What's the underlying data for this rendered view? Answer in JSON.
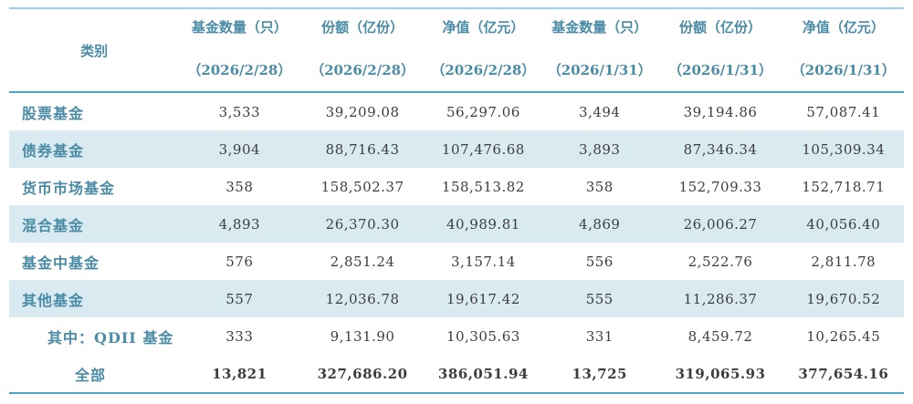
{
  "table": {
    "header": {
      "category_label": "类别",
      "columns": [
        {
          "title": "基金数量（只）",
          "date": "（2026/2/28）"
        },
        {
          "title": "份额（亿份）",
          "date": "（2026/2/28）"
        },
        {
          "title": "净值（亿元）",
          "date": "（2026/2/28）"
        },
        {
          "title": "基金数量（只）",
          "date": "（2026/1/31）"
        },
        {
          "title": "份额（亿份）",
          "date": "（2026/1/31）"
        },
        {
          "title": "净值（亿元）",
          "date": "（2026/1/31）"
        }
      ]
    },
    "rows": [
      {
        "category": "股票基金",
        "values": [
          "3,533",
          "39,209.08",
          "56,297.06",
          "3,494",
          "39,194.86",
          "57,087.41"
        ]
      },
      {
        "category": "债券基金",
        "values": [
          "3,904",
          "88,716.43",
          "107,476.68",
          "3,893",
          "87,346.34",
          "105,309.34"
        ]
      },
      {
        "category": "货币市场基金",
        "values": [
          "358",
          "158,502.37",
          "158,513.82",
          "358",
          "152,709.33",
          "152,718.71"
        ]
      },
      {
        "category": "混合基金",
        "values": [
          "4,893",
          "26,370.30",
          "40,989.81",
          "4,869",
          "26,006.27",
          "40,056.40"
        ]
      },
      {
        "category": "基金中基金",
        "values": [
          "576",
          "2,851.24",
          "3,157.14",
          "556",
          "2,522.76",
          "2,811.78"
        ]
      },
      {
        "category": "其他基金",
        "values": [
          "557",
          "12,036.78",
          "19,617.42",
          "555",
          "11,286.37",
          "19,670.52"
        ]
      },
      {
        "category": "其中：QDII 基金",
        "values": [
          "333",
          "9,131.90",
          "10,305.63",
          "331",
          "8,459.72",
          "10,265.45"
        ]
      },
      {
        "category": "全部",
        "values": [
          "13,821",
          "327,686.20",
          "386,051.94",
          "13,725",
          "319,065.93",
          "377,654.16"
        ]
      }
    ]
  },
  "colors": {
    "accent_text": "#4a8ba6",
    "number_text": "#3d3d3d",
    "row_shade": "#daeaf1",
    "border_top": "#9dcfe4",
    "border_rule": "#4da4c8"
  }
}
